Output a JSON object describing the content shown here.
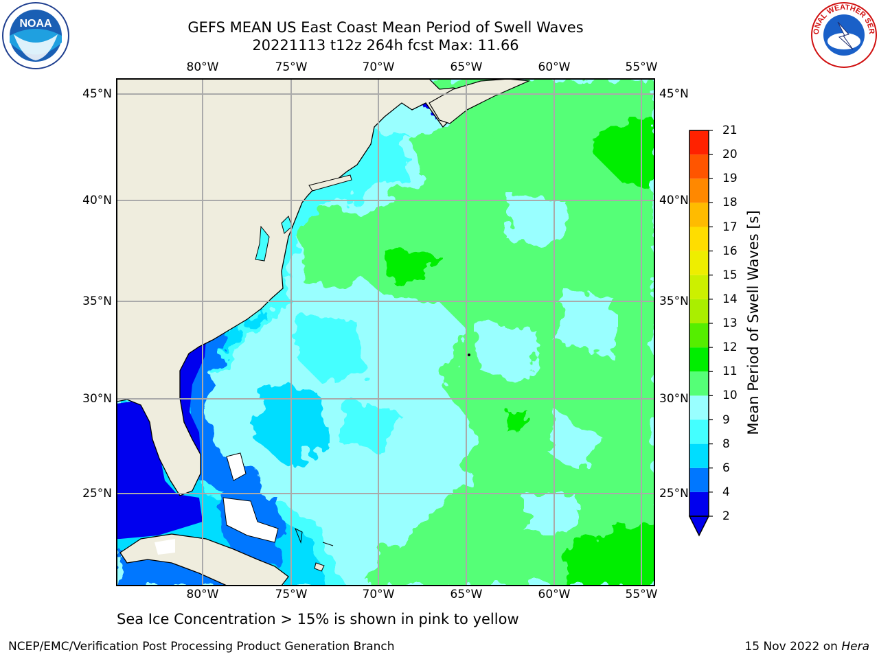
{
  "title_line1": "GEFS MEAN US East Coast Mean Period of Swell Waves",
  "title_line2": "20221113 t12z 264h fcst   Max: 11.66",
  "lon_labels": [
    "80°W",
    "75°W",
    "70°W",
    "65°W",
    "60°W",
    "55°W"
  ],
  "lat_labels": [
    "45°N",
    "40°N",
    "35°N",
    "30°N",
    "25°N"
  ],
  "colorbar": {
    "title": "Mean Period of Swell Waves [s]",
    "ticks": [
      "2",
      "4",
      "6",
      "8",
      "9",
      "10",
      "11",
      "12",
      "13",
      "14",
      "15",
      "16",
      "17",
      "18",
      "19",
      "20",
      "21"
    ],
    "colors": [
      "#0000ee",
      "#0077ff",
      "#00ddff",
      "#44ffff",
      "#99ffff",
      "#55ff77",
      "#00ee00",
      "#55ee00",
      "#aaee00",
      "#ccf000",
      "#eeee00",
      "#ffdd00",
      "#ffbb00",
      "#ff8800",
      "#ff5500",
      "#ff2200"
    ],
    "under_color": "#0000ee"
  },
  "note": "Sea Ice Concentration > 15% is shown in pink to yellow",
  "footer_left": "NCEP/EMC/Verification Post Processing Product Generation Branch",
  "footer_date": "15 Nov 2022 on ",
  "footer_machine": "Hera",
  "logo_left": {
    "name": "noaa-logo",
    "text": "NOAA"
  },
  "logo_right": {
    "name": "nws-logo",
    "text": "NATIONAL WEATHER SERVICE"
  },
  "colors": {
    "land": "#efedde",
    "grid": "#aaaaaa"
  }
}
